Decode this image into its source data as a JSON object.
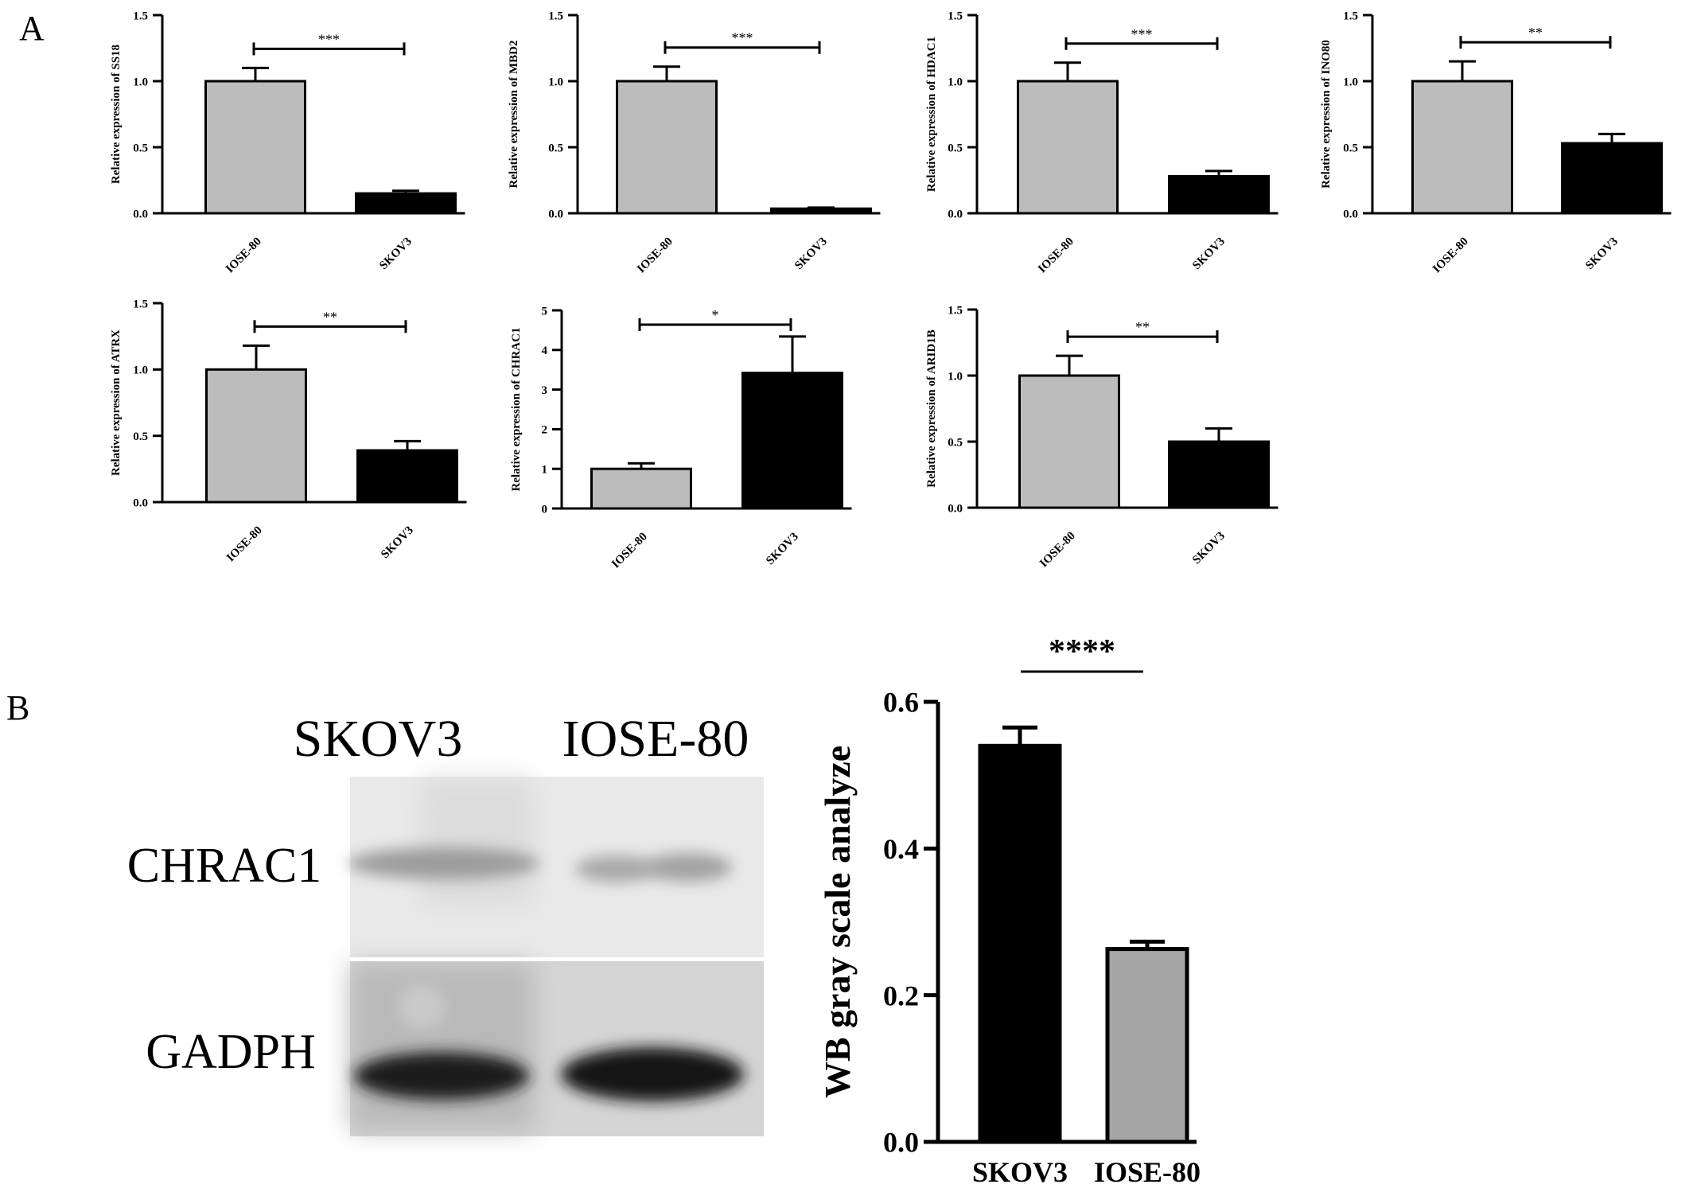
{
  "panel_labels": {
    "a": "A",
    "b": "B"
  },
  "colors": {
    "control_bar": "#bcbcbc",
    "tumor_bar": "#000000",
    "wb_control_bar": "#a6a6a6",
    "axis": "#000000"
  },
  "chart_data": [
    {
      "type": "bar",
      "ylabel": "Relative  expression of SS18",
      "categories": [
        "IOSE-80",
        "SKOV3"
      ],
      "values": [
        1.0,
        0.15
      ],
      "errors": [
        0.1,
        0.02
      ],
      "ylim": [
        0,
        1.5
      ],
      "yticks": [
        "0.0",
        "0.5",
        "1.0",
        "1.5"
      ],
      "significance": "***"
    },
    {
      "type": "bar",
      "ylabel": "Relative  expression of MBD2",
      "categories": [
        "IOSE-80",
        "SKOV3"
      ],
      "values": [
        1.0,
        0.035
      ],
      "errors": [
        0.11,
        0.008
      ],
      "ylim": [
        0,
        1.5
      ],
      "yticks": [
        "0.0",
        "0.5",
        "1.0",
        "1.5"
      ],
      "significance": "***"
    },
    {
      "type": "bar",
      "ylabel": "Relative  expression of HDAC1",
      "categories": [
        "IOSE-80",
        "SKOV3"
      ],
      "values": [
        1.0,
        0.28
      ],
      "errors": [
        0.14,
        0.04
      ],
      "ylim": [
        0,
        1.5
      ],
      "yticks": [
        "0.0",
        "0.5",
        "1.0",
        "1.5"
      ],
      "significance": "***"
    },
    {
      "type": "bar",
      "ylabel": "Relative  expression of INO80",
      "categories": [
        "IOSE-80",
        "SKOV3"
      ],
      "values": [
        1.0,
        0.53
      ],
      "errors": [
        0.15,
        0.07
      ],
      "ylim": [
        0,
        1.5
      ],
      "yticks": [
        "0.0",
        "0.5",
        "1.0",
        "1.5"
      ],
      "significance": "**"
    },
    {
      "type": "bar",
      "ylabel": "Relative  expression of ATRX",
      "categories": [
        "IOSE-80",
        "SKOV3"
      ],
      "values": [
        1.0,
        0.39
      ],
      "errors": [
        0.18,
        0.07
      ],
      "ylim": [
        0,
        1.5
      ],
      "yticks": [
        "0.0",
        "0.5",
        "1.0",
        "1.5"
      ],
      "significance": "**"
    },
    {
      "type": "bar",
      "ylabel": "Relative  expression of CHRAC1",
      "categories": [
        "IOSE-80",
        "SKOV3"
      ],
      "values": [
        1.0,
        3.42
      ],
      "errors": [
        0.14,
        0.92
      ],
      "ylim": [
        0,
        5
      ],
      "yticks": [
        "0",
        "1",
        "2",
        "3",
        "4",
        "5"
      ],
      "significance": "*"
    },
    {
      "type": "bar",
      "ylabel": "Relative  expression of ARID1B",
      "categories": [
        "IOSE-80",
        "SKOV3"
      ],
      "values": [
        1.0,
        0.5
      ],
      "errors": [
        0.15,
        0.1
      ],
      "ylim": [
        0,
        1.5
      ],
      "yticks": [
        "0.0",
        "0.5",
        "1.0",
        "1.5"
      ],
      "significance": "**"
    },
    {
      "type": "bar",
      "ylabel": "WB gray scale analyze",
      "categories": [
        "SKOV3",
        "IOSE-80"
      ],
      "values": [
        0.54,
        0.263
      ],
      "errors": [
        0.025,
        0.01
      ],
      "ylim": [
        0,
        0.6
      ],
      "yticks": [
        "0.0",
        "0.2",
        "0.4",
        "0.6"
      ],
      "significance": "****"
    }
  ],
  "western_blot": {
    "lanes": [
      "SKOV3",
      "IOSE-80"
    ],
    "rows": [
      "CHRAC1",
      "GADPH"
    ]
  }
}
